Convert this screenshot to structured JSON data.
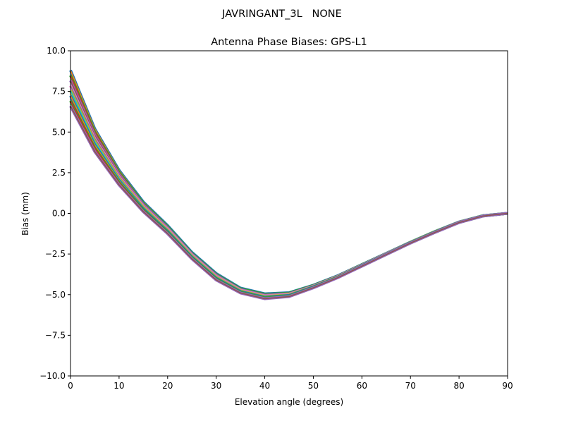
{
  "chart_data": {
    "type": "line",
    "suptitle": "JAVRINGANT_3L   NONE",
    "title": "Antenna Phase Biases: GPS-L1",
    "xlabel": "Elevation angle (degrees)",
    "ylabel": "Bias (mm)",
    "xlim": [
      0,
      90
    ],
    "ylim": [
      -10,
      10
    ],
    "xticks": [
      "0",
      "10",
      "20",
      "30",
      "40",
      "50",
      "60",
      "70",
      "80",
      "90"
    ],
    "yticks": [
      "10.0",
      "7.5",
      "5.0",
      "2.5",
      "0.0",
      "−2.5",
      "−5.0",
      "−7.5",
      "−10.0"
    ],
    "grid": false,
    "x": [
      0,
      5,
      10,
      15,
      20,
      25,
      30,
      35,
      40,
      45,
      50,
      55,
      60,
      65,
      70,
      75,
      80,
      85,
      90
    ],
    "colors": [
      "#1f77b4",
      "#ff7f0e",
      "#2ca02c",
      "#d62728",
      "#9467bd",
      "#8c564b",
      "#e377c2",
      "#7f7f7f",
      "#bcbd22",
      "#17becf"
    ],
    "series": [
      {
        "values": [
          8.8,
          5.2,
          2.65,
          0.7,
          -0.75,
          -2.4,
          -3.7,
          -4.6,
          -4.95,
          -4.88,
          -4.42,
          -3.84,
          -3.15,
          -2.46,
          -1.77,
          -1.12,
          -0.53,
          -0.14,
          0
        ]
      },
      {
        "values": [
          8.48,
          5.0,
          2.52,
          0.61,
          -0.82,
          -2.46,
          -3.76,
          -4.64,
          -4.99,
          -4.91,
          -4.44,
          -3.86,
          -3.16,
          -2.47,
          -1.78,
          -1.13,
          -0.54,
          -0.14,
          0
        ]
      },
      {
        "values": [
          8.17,
          4.8,
          2.39,
          0.53,
          -0.89,
          -2.51,
          -3.81,
          -4.69,
          -5.04,
          -4.95,
          -4.47,
          -3.87,
          -3.18,
          -2.48,
          -1.79,
          -1.14,
          -0.54,
          -0.15,
          0
        ]
      },
      {
        "values": [
          7.85,
          4.6,
          2.26,
          0.44,
          -0.97,
          -2.57,
          -3.87,
          -4.73,
          -5.08,
          -4.98,
          -4.49,
          -3.89,
          -3.19,
          -2.49,
          -1.8,
          -1.15,
          -0.55,
          -0.15,
          0
        ]
      },
      {
        "values": [
          7.55,
          4.4,
          2.14,
          0.36,
          -1.04,
          -2.63,
          -3.93,
          -4.77,
          -5.12,
          -5.02,
          -4.51,
          -3.91,
          -3.21,
          -2.51,
          -1.8,
          -1.15,
          -0.55,
          -0.15,
          0
        ]
      },
      {
        "values": [
          7.23,
          4.2,
          2.01,
          0.27,
          -1.11,
          -2.69,
          -3.99,
          -4.81,
          -5.16,
          -5.05,
          -4.53,
          -3.93,
          -3.22,
          -2.52,
          -1.81,
          -1.16,
          -0.56,
          -0.15,
          0
        ]
      },
      {
        "values": [
          6.92,
          4.0,
          1.88,
          0.19,
          -1.18,
          -2.74,
          -4.04,
          -4.86,
          -5.21,
          -5.09,
          -4.56,
          -3.94,
          -3.24,
          -2.53,
          -1.82,
          -1.17,
          -0.56,
          -0.16,
          0
        ]
      },
      {
        "values": [
          6.6,
          3.8,
          1.75,
          0.1,
          -1.25,
          -2.8,
          -4.1,
          -4.9,
          -5.25,
          -5.12,
          -4.58,
          -3.96,
          -3.25,
          -2.54,
          -1.83,
          -1.18,
          -0.57,
          -0.16,
          0
        ]
      }
    ]
  }
}
